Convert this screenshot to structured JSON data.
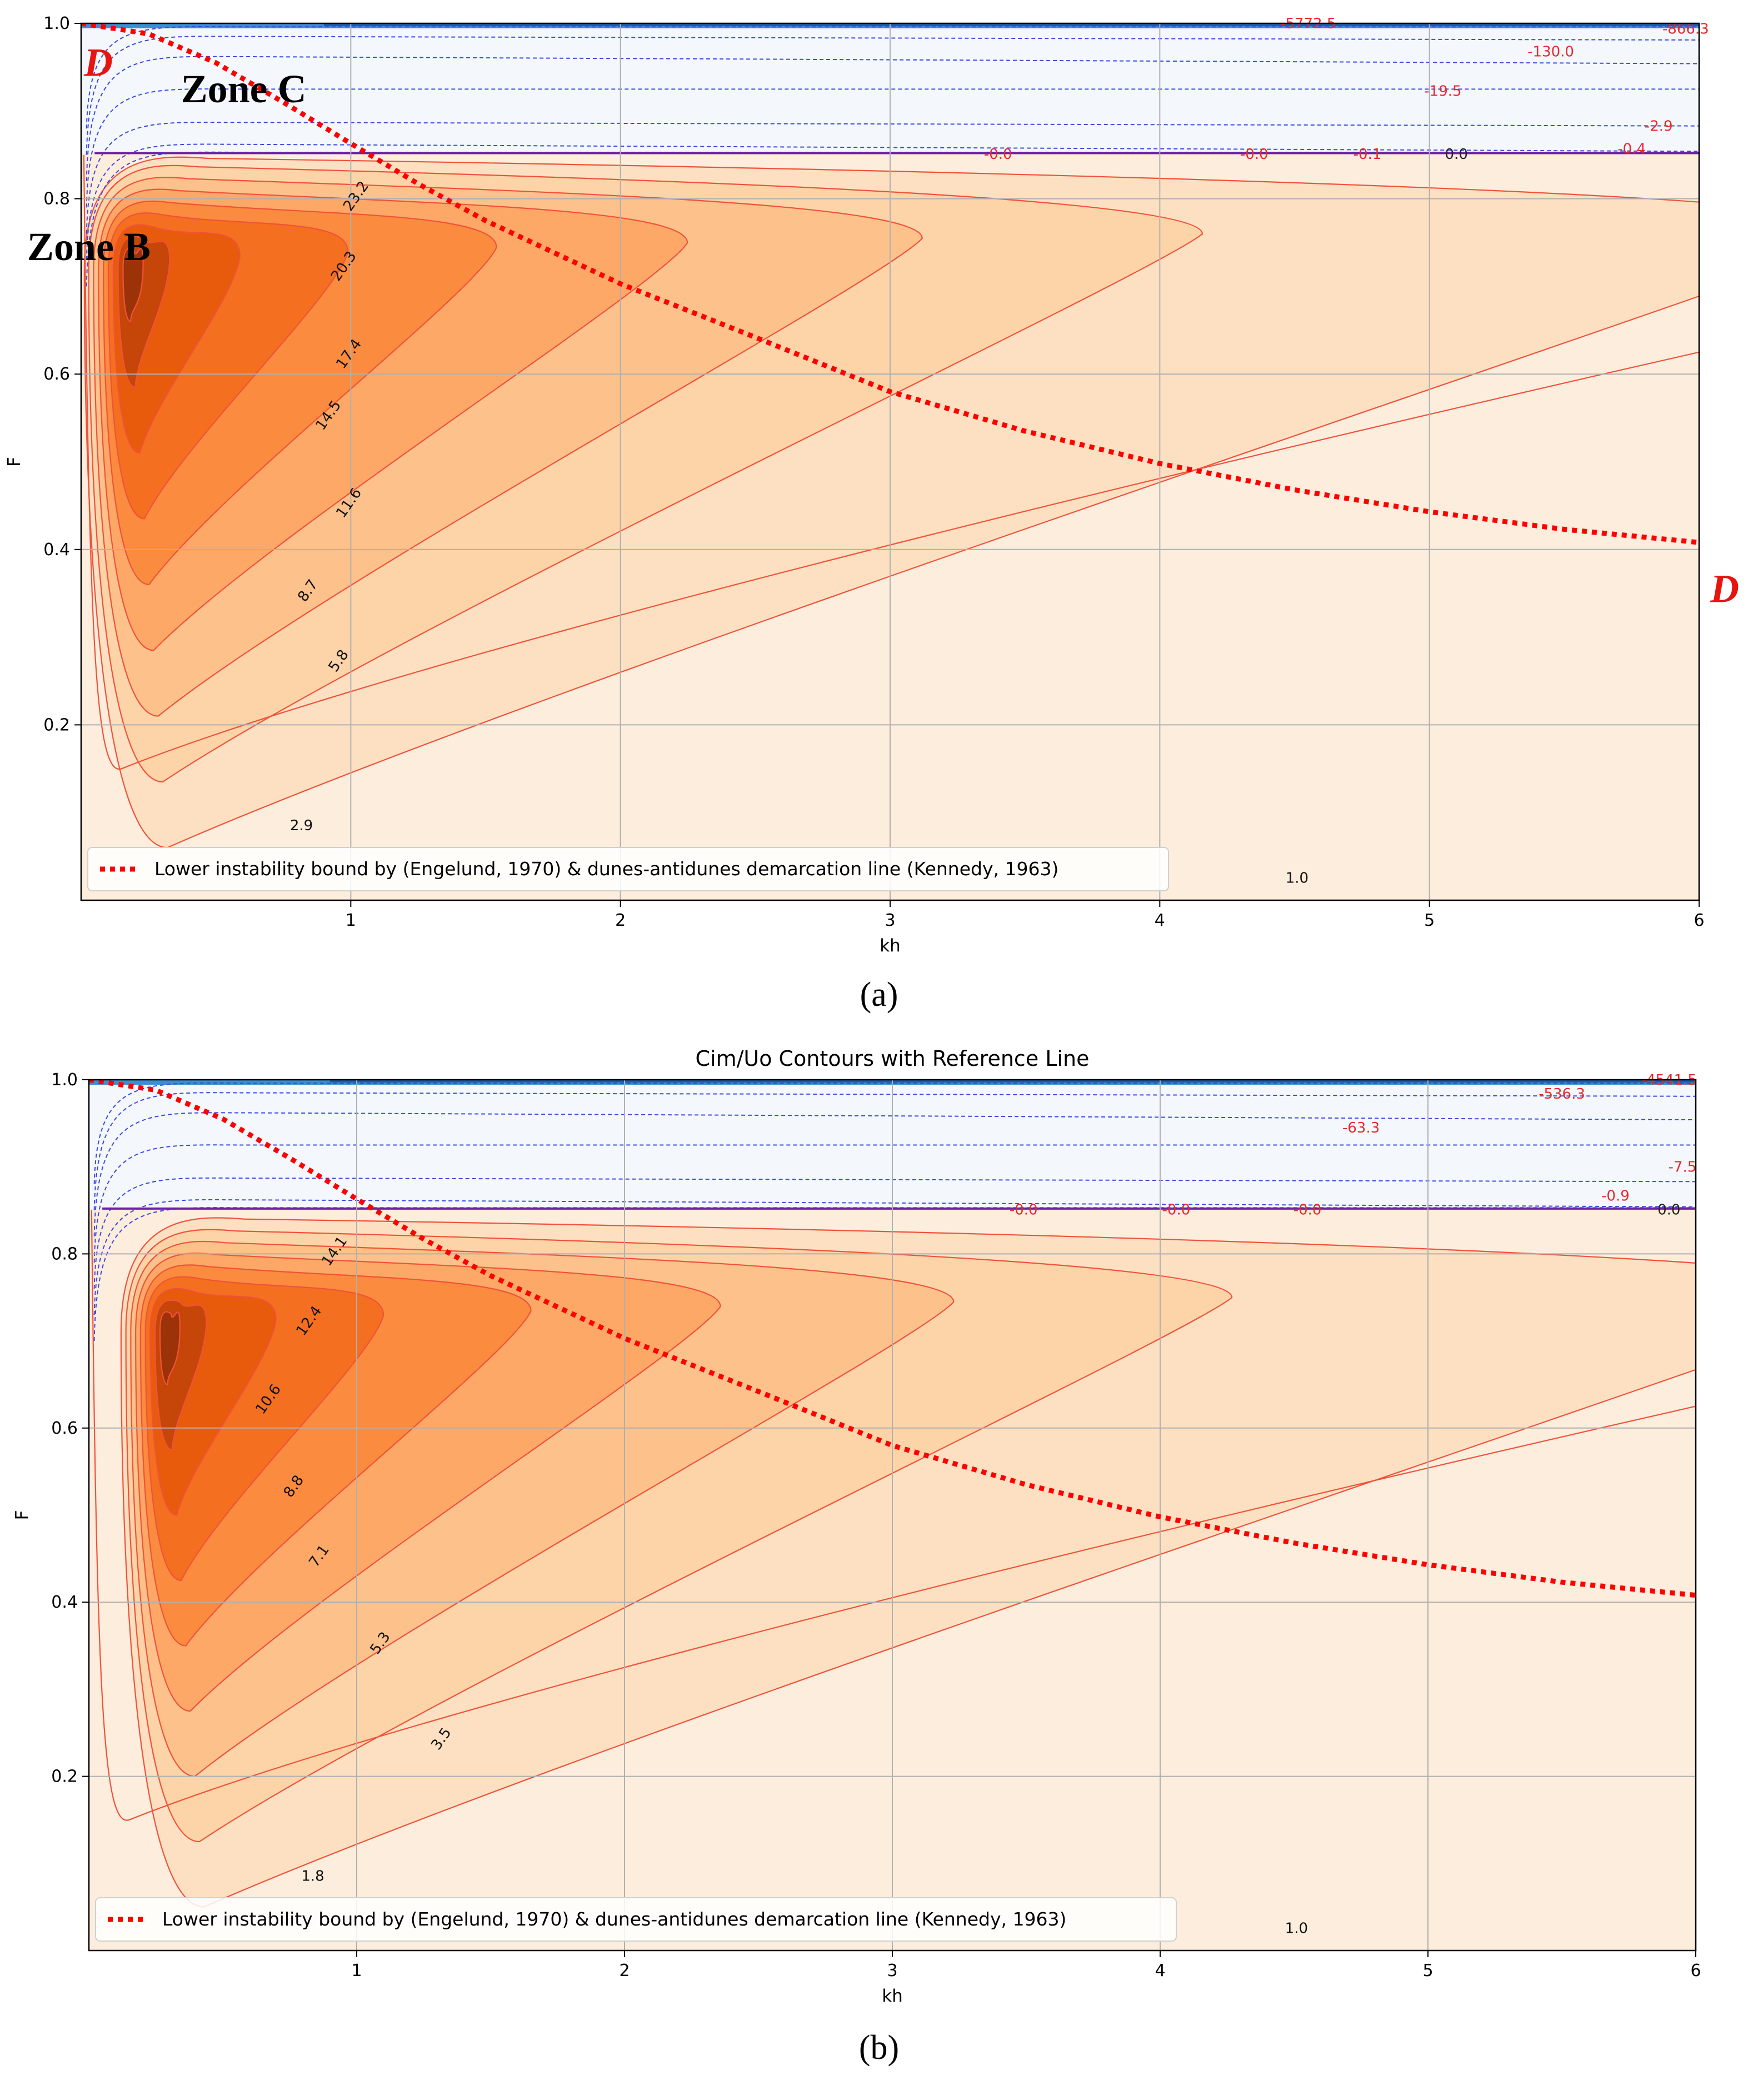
{
  "chart_data": [
    {
      "panel": "(a)",
      "type": "contour",
      "title": "",
      "xlabel": "kh",
      "ylabel": "F",
      "xlim": [
        0,
        6
      ],
      "ylim": [
        0,
        1.0
      ],
      "xticks": [
        "1",
        "2",
        "3",
        "4",
        "5",
        "6"
      ],
      "yticks": [
        "0.2",
        "0.4",
        "0.6",
        "0.8",
        "1.0"
      ],
      "grid": true,
      "legend": {
        "placement": "lower-left",
        "label": "Lower instability bound by (Engelund, 1970) & dunes-antidunes demarcation line (Kennedy, 1963)"
      },
      "reference_line": {
        "name": "Lower instability bound / dunes-antidunes demarcation",
        "x": [
          0.0,
          0.25,
          0.5,
          0.75,
          1.0,
          1.25,
          1.5,
          2.0,
          2.5,
          3.0,
          3.5,
          4.0,
          4.5,
          5.0,
          5.5,
          6.0
        ],
        "y": [
          1.0,
          0.988,
          0.955,
          0.91,
          0.863,
          0.817,
          0.775,
          0.703,
          0.642,
          0.58,
          0.535,
          0.498,
          0.468,
          0.443,
          0.423,
          0.408
        ]
      },
      "line_labels": [
        "D",
        "D"
      ],
      "zone_labels": [
        "Zone C",
        "Zone B"
      ],
      "positive_peak": {
        "kh": 0.17,
        "F": 0.72
      },
      "positive_levels": [
        1.0,
        2.9,
        5.8,
        8.7,
        11.6,
        14.5,
        17.4,
        20.3,
        23.2
      ],
      "positive_level_labels": [
        "1.0",
        "2.9",
        "5.8",
        "8.7",
        "11.6",
        "14.5",
        "17.4",
        "20.3",
        "23.2"
      ],
      "negative_level_labels": [
        "-5772.5",
        "-866.3",
        "-130.0",
        "-19.5",
        "-2.9",
        "-0.4",
        "-0.1",
        "-0.0",
        "-0.0",
        "0.0"
      ]
    },
    {
      "panel": "(b)",
      "type": "contour",
      "title": "Cim/Uo Contours with Reference Line",
      "xlabel": "kh",
      "ylabel": "F",
      "xlim": [
        0,
        6
      ],
      "ylim": [
        0,
        1.0
      ],
      "xticks": [
        "1",
        "2",
        "3",
        "4",
        "5",
        "6"
      ],
      "yticks": [
        "0.2",
        "0.4",
        "0.6",
        "0.8",
        "1.0"
      ],
      "grid": true,
      "legend": {
        "placement": "lower-left",
        "label": "Lower instability bound by (Engelund, 1970) & dunes-antidunes demarcation line (Kennedy, 1963)"
      },
      "reference_line": {
        "name": "Lower instability bound / dunes-antidunes demarcation",
        "x": [
          0.0,
          0.25,
          0.5,
          0.75,
          1.0,
          1.25,
          1.5,
          2.0,
          2.5,
          3.0,
          3.5,
          4.0,
          4.5,
          5.0,
          5.5,
          6.0
        ],
        "y": [
          1.0,
          0.988,
          0.955,
          0.91,
          0.863,
          0.817,
          0.775,
          0.703,
          0.642,
          0.58,
          0.535,
          0.498,
          0.468,
          0.443,
          0.423,
          0.408
        ]
      },
      "positive_peak": {
        "kh": 0.28,
        "F": 0.71
      },
      "positive_levels": [
        1.0,
        1.8,
        3.5,
        5.3,
        7.1,
        8.8,
        10.6,
        12.4,
        14.1
      ],
      "positive_level_labels": [
        "1.0",
        "1.8",
        "3.5",
        "5.3",
        "7.1",
        "8.8",
        "10.6",
        "12.4",
        "14.1"
      ],
      "negative_level_labels": [
        "-4541.5",
        "-536.3",
        "-63.3",
        "-7.5",
        "-0.9",
        "-0.0",
        "-0.0",
        "-0.0",
        "0.0"
      ]
    }
  ],
  "captions": [
    "(a)",
    "(b)"
  ]
}
